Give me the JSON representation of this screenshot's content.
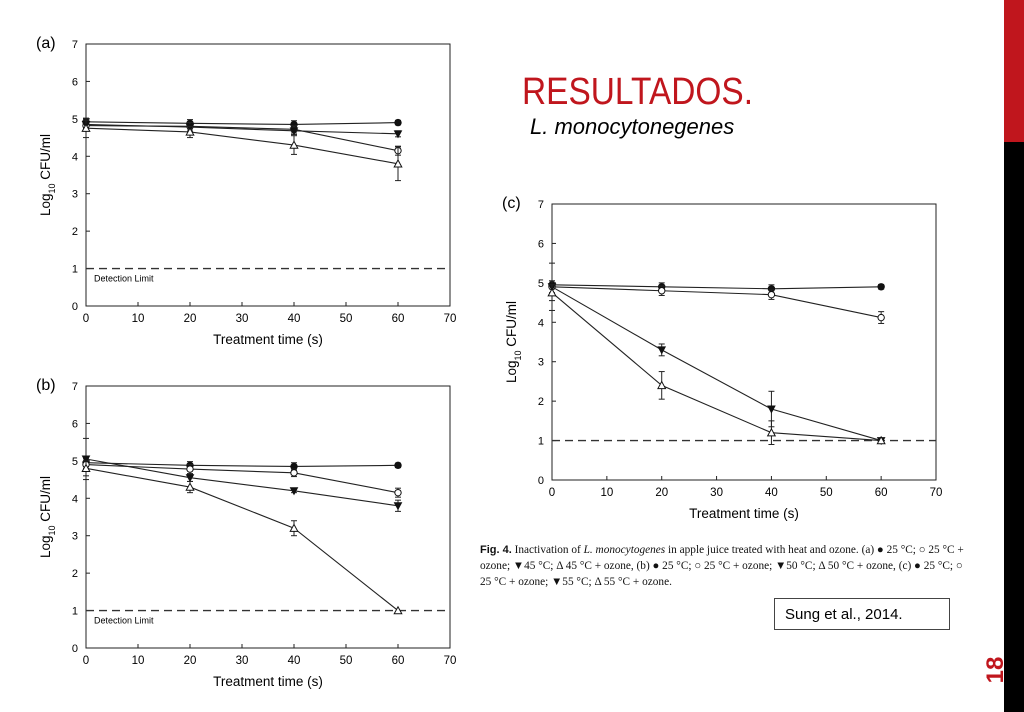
{
  "slide": {
    "title": "RESULTADOS.",
    "subtitle": "L. monocytonegenes",
    "citation": "Sung et al., 2014.",
    "page_number": "18",
    "accent_color": "#c0161d"
  },
  "caption": {
    "label": "Fig. 4.",
    "text_before_italic": "Inactivation of",
    "italic": "L. monocytogenes",
    "text_after_italic": "in apple juice treated with heat and ozone. (a) ● 25 °C; ○ 25 °C + ozone; ▼45 °C; Δ 45 °C + ozone, (b) ● 25 °C; ○ 25 °C + ozone; ▼50 °C; Δ 50 °C + ozone, (c) ● 25 °C; ○ 25 °C + ozone; ▼55 °C; Δ 55 °C + ozone."
  },
  "chart_data": [
    {
      "type": "line",
      "panel": "(a)",
      "xlabel": "Treatment time (s)",
      "ylabel": "Log10 CFU/ml",
      "xlim": [
        0,
        70
      ],
      "ylim": [
        0,
        7
      ],
      "xticks": [
        "0",
        "10",
        "20",
        "30",
        "40",
        "50",
        "60",
        "70"
      ],
      "yticks": [
        "0",
        "1",
        "2",
        "3",
        "4",
        "5",
        "6",
        "7"
      ],
      "reference_line": {
        "y": 1,
        "label": "Detection Limit",
        "style": "dashed"
      },
      "x": [
        0,
        20,
        40,
        60
      ],
      "series": [
        {
          "marker": "filled-circle",
          "values": [
            4.92,
            4.88,
            4.85,
            4.9
          ],
          "errors": [
            0.1,
            0.1,
            0.1,
            0.06
          ]
        },
        {
          "marker": "open-circle",
          "values": [
            4.82,
            4.8,
            4.72,
            4.15
          ],
          "errors": [
            0.1,
            0.1,
            0.1,
            0.12
          ]
        },
        {
          "marker": "filled-triangle-down",
          "values": [
            4.85,
            4.78,
            4.68,
            4.6
          ],
          "errors": [
            0.1,
            0.12,
            0.1,
            0.08
          ]
        },
        {
          "marker": "open-triangle",
          "values": [
            4.75,
            4.65,
            4.3,
            3.8
          ],
          "errors": [
            0.25,
            0.15,
            0.25,
            0.45
          ]
        }
      ]
    },
    {
      "type": "line",
      "panel": "(b)",
      "xlabel": "Treatment time (s)",
      "ylabel": "Log10 CFU/ml",
      "xlim": [
        0,
        70
      ],
      "ylim": [
        0,
        7
      ],
      "xticks": [
        "0",
        "10",
        "20",
        "30",
        "40",
        "50",
        "60",
        "70"
      ],
      "yticks": [
        "0",
        "1",
        "2",
        "3",
        "4",
        "5",
        "6",
        "7"
      ],
      "reference_line": {
        "y": 1,
        "label": "Detection Limit",
        "style": "dashed"
      },
      "x": [
        0,
        20,
        40,
        60
      ],
      "series": [
        {
          "marker": "filled-circle",
          "values": [
            4.95,
            4.88,
            4.85,
            4.88
          ],
          "errors": [
            0.1,
            0.1,
            0.1,
            0.06
          ]
        },
        {
          "marker": "open-circle",
          "values": [
            4.9,
            4.78,
            4.68,
            4.15
          ],
          "errors": [
            0.1,
            0.12,
            0.1,
            0.12
          ]
        },
        {
          "marker": "filled-triangle-down",
          "values": [
            5.05,
            4.55,
            4.2,
            3.8
          ],
          "errors": [
            0.55,
            0.1,
            0.05,
            0.15
          ]
        },
        {
          "marker": "open-triangle",
          "values": [
            4.8,
            4.3,
            3.2,
            1.0
          ],
          "errors": [
            0.2,
            0.15,
            0.2,
            0.0
          ]
        }
      ]
    },
    {
      "type": "line",
      "panel": "(c)",
      "xlabel": "Treatment time (s)",
      "ylabel": "Log10 CFU/ml",
      "xlim": [
        0,
        70
      ],
      "ylim": [
        0,
        7
      ],
      "xticks": [
        "0",
        "10",
        "20",
        "30",
        "40",
        "50",
        "60",
        "70"
      ],
      "yticks": [
        "0",
        "1",
        "2",
        "3",
        "4",
        "5",
        "6",
        "7"
      ],
      "reference_line": {
        "y": 1,
        "label": "",
        "style": "dashed"
      },
      "x": [
        0,
        20,
        40,
        60
      ],
      "series": [
        {
          "marker": "filled-circle",
          "values": [
            4.95,
            4.9,
            4.85,
            4.9
          ],
          "errors": [
            0.1,
            0.1,
            0.1,
            0.06
          ]
        },
        {
          "marker": "open-circle",
          "values": [
            4.9,
            4.8,
            4.7,
            4.12
          ],
          "errors": [
            0.15,
            0.12,
            0.12,
            0.15
          ]
        },
        {
          "marker": "filled-triangle-down",
          "values": [
            4.9,
            3.3,
            1.8,
            1.0
          ],
          "errors": [
            0.6,
            0.15,
            0.45,
            0.0
          ]
        },
        {
          "marker": "open-triangle",
          "values": [
            4.75,
            2.4,
            1.2,
            1.0
          ],
          "errors": [
            0.2,
            0.35,
            0.3,
            0.0
          ]
        }
      ]
    }
  ]
}
